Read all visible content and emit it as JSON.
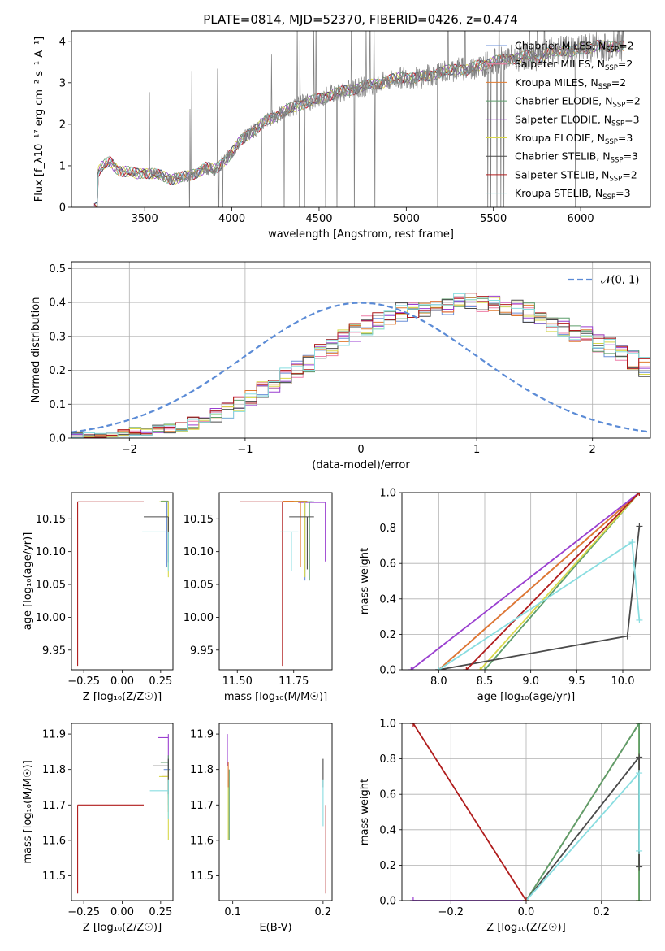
{
  "figure": {
    "title": "PLATE=0814, MJD=52370, FIBERID=0426, z=0.474"
  },
  "colors": {
    "Chabrier MILES": "#6a8fd8",
    "Salpeter MILES": "#ee7fa8",
    "Kroupa MILES": "#e07a2e",
    "Chabrier ELODIE": "#5d9d6b",
    "Salpeter ELODIE": "#9a3fd0",
    "Kroupa ELODIE": "#d8d84a",
    "Chabrier STELIB": "#4a4a4a",
    "Salpeter STELIB": "#b01c1c",
    "Kroupa STELIB": "#88dde0",
    "data": "#808080",
    "gaussian": "#5b8bd6"
  },
  "chart_data": [
    {
      "id": "spectrum",
      "type": "line",
      "xlabel": "wavelength [Angstrom, rest frame]",
      "ylabel": "Flux [f_λ10⁻¹⁷ erg cm⁻² s⁻¹ A⁻¹]",
      "xlim": [
        3080,
        6400
      ],
      "ylim": [
        0,
        4.25
      ],
      "xticks": [
        3500,
        4000,
        4500,
        5000,
        5500,
        6000
      ],
      "yticks": [
        0,
        1,
        2,
        3,
        4
      ],
      "data_series": {
        "name": "data",
        "x": [
          3200,
          3225,
          3250,
          3300,
          3350,
          3400,
          3450,
          3500,
          3550,
          3600,
          3650,
          3700,
          3750,
          3800,
          3850,
          3900,
          3950,
          4000,
          4050,
          4100,
          4150,
          4200,
          4250,
          4300,
          4350,
          4400,
          4450,
          4500,
          4550,
          4600,
          4650,
          4700,
          4750,
          4800,
          4850,
          4900,
          4950,
          5000,
          5050,
          5100,
          5150,
          5200,
          5250,
          5300,
          5350,
          5400,
          5450,
          5500,
          5550,
          5600,
          5650,
          5700,
          5750,
          5800,
          5850,
          5900,
          5950,
          6000,
          6050,
          6100,
          6150,
          6200
        ],
        "y": [
          0,
          0.8,
          0.95,
          1.1,
          0.9,
          0.85,
          0.8,
          0.85,
          0.8,
          0.75,
          0.7,
          0.7,
          0.75,
          0.85,
          0.95,
          0.9,
          1.1,
          1.3,
          1.6,
          1.8,
          1.9,
          2.1,
          2.2,
          2.3,
          2.4,
          2.5,
          2.55,
          2.6,
          2.7,
          2.75,
          2.8,
          2.85,
          2.9,
          2.95,
          3.0,
          3.05,
          3.1,
          3.15,
          3.1,
          3.15,
          3.2,
          3.25,
          3.3,
          3.35,
          3.3,
          3.4,
          3.45,
          3.5,
          3.55,
          3.6,
          3.6,
          3.65,
          3.6,
          3.7,
          3.75,
          3.8,
          3.75,
          3.8,
          3.85,
          3.9,
          3.85,
          3.9
        ]
      },
      "model_series": [
        {
          "name": "Chabrier MILES",
          "label": "Chabrier MILES, N",
          "nssp": "=2"
        },
        {
          "name": "Salpeter MILES",
          "label": "Salpeter MILES, N",
          "nssp": "=2"
        },
        {
          "name": "Kroupa MILES",
          "label": "Kroupa MILES, N",
          "nssp": "=2"
        },
        {
          "name": "Chabrier ELODIE",
          "label": "Chabrier ELODIE, N",
          "nssp": "=2"
        },
        {
          "name": "Salpeter ELODIE",
          "label": "Salpeter ELODIE, N",
          "nssp": "=3"
        },
        {
          "name": "Kroupa ELODIE",
          "label": "Kroupa ELODIE, N",
          "nssp": "=3"
        },
        {
          "name": "Chabrier STELIB",
          "label": "Chabrier STELIB, N",
          "nssp": "=3"
        },
        {
          "name": "Salpeter STELIB",
          "label": "Salpeter STELIB, N",
          "nssp": "=2"
        },
        {
          "name": "Kroupa STELIB",
          "label": "Kroupa STELIB, N",
          "nssp": "=3"
        }
      ],
      "legend_sub": "SSP",
      "legend_position": "right"
    },
    {
      "id": "residuals",
      "type": "line",
      "xlabel": "(data-model)/error",
      "ylabel": "Normed distribution",
      "xlim": [
        -2.5,
        2.5
      ],
      "ylim": [
        0,
        0.52
      ],
      "xticks": [
        -2,
        -1,
        0,
        1,
        2
      ],
      "xtick_labels": [
        "−2",
        "−1",
        "0",
        "1",
        "2"
      ],
      "yticks": [
        0.0,
        0.1,
        0.2,
        0.3,
        0.4,
        0.5
      ],
      "ytick_labels": [
        "0.0",
        "0.1",
        "0.2",
        "0.3",
        "0.4",
        "0.5"
      ],
      "grid": true,
      "gaussian_legend": "𝒩(0, 1)",
      "legend_position": "top-right",
      "bin_width": 0.1,
      "bin_start": -2.5,
      "histogram_base": [
        0.01,
        0.01,
        0.01,
        0.01,
        0.015,
        0.02,
        0.02,
        0.025,
        0.03,
        0.035,
        0.045,
        0.055,
        0.07,
        0.085,
        0.1,
        0.12,
        0.14,
        0.16,
        0.18,
        0.2,
        0.22,
        0.25,
        0.27,
        0.29,
        0.31,
        0.33,
        0.34,
        0.36,
        0.37,
        0.38,
        0.38,
        0.39,
        0.39,
        0.4,
        0.4,
        0.4,
        0.39,
        0.39,
        0.38,
        0.37,
        0.36,
        0.34,
        0.33,
        0.31,
        0.3,
        0.28,
        0.27,
        0.25,
        0.23,
        0.21,
        0.19,
        0.17,
        0.15,
        0.13,
        0.11,
        0.09,
        0.075,
        0.06,
        0.05,
        0.04,
        0.03,
        0.025,
        0.02,
        0.015,
        0.01,
        0.01,
        0.01,
        0.01,
        0.01,
        0.01
      ]
    },
    {
      "id": "age_vs_Z",
      "type": "scatter",
      "xlabel": "Z [log₁₀(Z/Z☉)]",
      "ylabel": "age  [log₁₀(age/yr)]",
      "xlim": [
        -0.33,
        0.33
      ],
      "ylim": [
        9.92,
        10.19
      ],
      "xticks": [
        -0.25,
        0.0,
        0.25
      ],
      "xtick_labels": [
        "−0.25",
        "0.00",
        "0.25"
      ],
      "yticks": [
        9.95,
        10.0,
        10.05,
        10.1,
        10.15
      ],
      "ytick_labels": [
        "9.95",
        "10.00",
        "10.05",
        "10.10",
        "10.15"
      ],
      "points": [
        {
          "series": "Salpeter STELIB",
          "x": -0.29,
          "y": 10.176,
          "xerr": [
            0,
            0.43
          ],
          "yerr": [
            0.25,
            0
          ]
        },
        {
          "series": "Chabrier MILES",
          "x": 0.29,
          "y": 10.176,
          "xerr": [
            0.03,
            0.01
          ],
          "yerr": [
            0.1,
            0
          ]
        },
        {
          "series": "Kroupa MILES",
          "x": 0.3,
          "y": 10.177,
          "xerr": [
            0.04,
            0.0
          ],
          "yerr": [
            0.08,
            0
          ]
        },
        {
          "series": "Chabrier ELODIE",
          "x": 0.3,
          "y": 10.177,
          "xerr": [
            0.05,
            0.0
          ],
          "yerr": [
            0.1,
            0
          ]
        },
        {
          "series": "Kroupa ELODIE",
          "x": 0.3,
          "y": 10.176,
          "xerr": [
            0.06,
            0.0
          ],
          "yerr": [
            0.115,
            0
          ]
        },
        {
          "series": "Chabrier STELIB",
          "x": 0.3,
          "y": 10.153,
          "xerr": [
            0.16,
            0.0
          ],
          "yerr": [
            0.07,
            0
          ]
        },
        {
          "series": "Kroupa STELIB",
          "x": 0.3,
          "y": 10.13,
          "xerr": [
            0.17,
            0.0
          ],
          "yerr": [
            0.06,
            0
          ]
        }
      ]
    },
    {
      "id": "age_vs_mass",
      "type": "scatter",
      "xlabel": "mass [log₁₀(M/M☉)]",
      "ylabel": "",
      "xlim": [
        11.42,
        11.92
      ],
      "ylim": [
        9.92,
        10.19
      ],
      "xticks": [
        11.5,
        11.75
      ],
      "xtick_labels": [
        "11.50",
        "11.75"
      ],
      "yticks": [
        9.95,
        10.0,
        10.05,
        10.1,
        10.15
      ],
      "ytick_labels": [
        "9.95",
        "10.00",
        "10.05",
        "10.10",
        "10.15"
      ],
      "points": [
        {
          "series": "Salpeter STELIB",
          "x": 11.7,
          "y": 10.176,
          "xerr": [
            0.19,
            0.0
          ],
          "yerr": [
            0.25,
            0
          ]
        },
        {
          "series": "Salpeter ELODIE",
          "x": 11.89,
          "y": 10.175,
          "xerr": [
            0.12,
            0.0
          ],
          "yerr": [
            0.09,
            0
          ]
        },
        {
          "series": "Chabrier MILES",
          "x": 11.8,
          "y": 10.176,
          "xerr": [
            0.07,
            0.03
          ],
          "yerr": [
            0.12,
            0
          ]
        },
        {
          "series": "Kroupa MILES",
          "x": 11.78,
          "y": 10.177,
          "xerr": [
            0.08,
            0.03
          ],
          "yerr": [
            0.1,
            0
          ]
        },
        {
          "series": "Chabrier ELODIE",
          "x": 11.82,
          "y": 10.176,
          "xerr": [
            0.06,
            0.02
          ],
          "yerr": [
            0.12,
            0
          ]
        },
        {
          "series": "Kroupa ELODIE",
          "x": 11.8,
          "y": 10.176,
          "xerr": [
            0.05,
            0.02
          ],
          "yerr": [
            0.115,
            0
          ]
        },
        {
          "series": "Chabrier STELIB",
          "x": 11.81,
          "y": 10.153,
          "xerr": [
            0.08,
            0.03
          ],
          "yerr": [
            0.08,
            0
          ]
        },
        {
          "series": "Kroupa STELIB",
          "x": 11.74,
          "y": 10.13,
          "xerr": [
            0.05,
            0.03
          ],
          "yerr": [
            0.06,
            0
          ]
        }
      ]
    },
    {
      "id": "weight_vs_age",
      "type": "line",
      "xlabel": "age  [log₁₀(age/yr)]",
      "ylabel": "mass weight",
      "xlim": [
        7.6,
        10.3
      ],
      "ylim": [
        0,
        1.0
      ],
      "xticks": [
        8.0,
        8.5,
        9.0,
        9.5,
        10.0
      ],
      "xtick_labels": [
        "8.0",
        "8.5",
        "9.0",
        "9.5",
        "10.0"
      ],
      "yticks": [
        0.0,
        0.2,
        0.4,
        0.6,
        0.8,
        1.0
      ],
      "ytick_labels": [
        "0.0",
        "0.2",
        "0.4",
        "0.6",
        "0.8",
        "1.0"
      ],
      "grid": true,
      "series": [
        {
          "name": "Chabrier MILES",
          "x": [
            8.0,
            10.18
          ],
          "y": [
            0.0,
            1.0
          ]
        },
        {
          "name": "Salpeter MILES",
          "x": [
            8.0,
            10.18
          ],
          "y": [
            0.0,
            1.0
          ]
        },
        {
          "name": "Kroupa MILES",
          "x": [
            8.0,
            10.18
          ],
          "y": [
            0.0,
            1.0
          ]
        },
        {
          "name": "Chabrier ELODIE",
          "x": [
            8.5,
            10.18
          ],
          "y": [
            0.0,
            1.0
          ]
        },
        {
          "name": "Salpeter ELODIE",
          "x": [
            7.7,
            10.18
          ],
          "y": [
            0.0,
            1.0
          ]
        },
        {
          "name": "Kroupa ELODIE",
          "x": [
            8.45,
            10.18
          ],
          "y": [
            0.0,
            1.0
          ]
        },
        {
          "name": "Chabrier STELIB",
          "x": [
            8.0,
            10.05,
            10.18
          ],
          "y": [
            0.0,
            0.19,
            0.81
          ]
        },
        {
          "name": "Salpeter STELIB",
          "x": [
            8.3,
            10.18
          ],
          "y": [
            0.0,
            1.0
          ]
        },
        {
          "name": "Kroupa STELIB",
          "x": [
            8.0,
            10.1,
            10.18
          ],
          "y": [
            0.0,
            0.72,
            0.28
          ]
        }
      ]
    },
    {
      "id": "mass_vs_Z",
      "type": "scatter",
      "xlabel": "Z [log₁₀(Z/Z☉)]",
      "ylabel": "mass [log₁₀(M/M☉)]",
      "xlim": [
        -0.33,
        0.33
      ],
      "ylim": [
        11.43,
        11.93
      ],
      "xticks": [
        -0.25,
        0.0,
        0.25
      ],
      "xtick_labels": [
        "−0.25",
        "0.00",
        "0.25"
      ],
      "yticks": [
        11.5,
        11.6,
        11.7,
        11.8,
        11.9
      ],
      "ytick_labels": [
        "11.5",
        "11.6",
        "11.7",
        "11.8",
        "11.9"
      ],
      "points": [
        {
          "series": "Salpeter STELIB",
          "x": -0.29,
          "y": 11.7,
          "xerr": [
            0,
            0.43
          ],
          "yerr": [
            0.25,
            0.0
          ]
        },
        {
          "series": "Salpeter ELODIE",
          "x": 0.3,
          "y": 11.89,
          "xerr": [
            0.07,
            0.0
          ],
          "yerr": [
            0.1,
            0.01
          ]
        },
        {
          "series": "Chabrier MILES",
          "x": 0.3,
          "y": 11.8,
          "xerr": [
            0.03,
            0.01
          ],
          "yerr": [
            0.1,
            0.02
          ]
        },
        {
          "series": "Kroupa MILES",
          "x": 0.3,
          "y": 11.78,
          "xerr": [
            0.04,
            0.0
          ],
          "yerr": [
            0.1,
            0.02
          ]
        },
        {
          "series": "Chabrier ELODIE",
          "x": 0.3,
          "y": 11.82,
          "xerr": [
            0.05,
            0.0
          ],
          "yerr": [
            0.1,
            0.02
          ]
        },
        {
          "series": "Kroupa ELODIE",
          "x": 0.3,
          "y": 11.78,
          "xerr": [
            0.06,
            0.0
          ],
          "yerr": [
            0.18,
            0.02
          ]
        },
        {
          "series": "Chabrier STELIB",
          "x": 0.3,
          "y": 11.81,
          "xerr": [
            0.1,
            0.0
          ],
          "yerr": [
            0.08,
            0.02
          ]
        },
        {
          "series": "Kroupa STELIB",
          "x": 0.3,
          "y": 11.74,
          "xerr": [
            0.12,
            0.0
          ],
          "yerr": [
            0.08,
            0.03
          ]
        }
      ]
    },
    {
      "id": "mass_vs_EBV",
      "type": "scatter",
      "xlabel": "E(B-V)",
      "ylabel": "",
      "xlim": [
        0.085,
        0.21
      ],
      "ylim": [
        11.43,
        11.93
      ],
      "xticks": [
        0.1,
        0.2
      ],
      "xtick_labels": [
        "0.1",
        "0.2"
      ],
      "yticks": [
        11.5,
        11.6,
        11.7,
        11.8,
        11.9
      ],
      "ytick_labels": [
        "11.5",
        "11.6",
        "11.7",
        "11.8",
        "11.9"
      ],
      "points": [
        {
          "series": "Salpeter ELODIE",
          "x": 0.094,
          "y": 11.89,
          "xerr": [
            0,
            0
          ],
          "yerr": [
            0.08,
            0.01
          ]
        },
        {
          "series": "Kroupa ELODIE",
          "x": 0.095,
          "y": 11.75,
          "xerr": [
            0,
            0
          ],
          "yerr": [
            0.15,
            0.02
          ]
        },
        {
          "series": "Chabrier ELODIE",
          "x": 0.096,
          "y": 11.78,
          "xerr": [
            0,
            0
          ],
          "yerr": [
            0.18,
            0.02
          ]
        },
        {
          "series": "Kroupa MILES",
          "x": 0.095,
          "y": 11.8,
          "xerr": [
            0,
            0
          ],
          "yerr": [
            0.05,
            0.02
          ]
        },
        {
          "series": "Salpeter STELIB",
          "x": 0.203,
          "y": 11.7,
          "xerr": [
            0,
            0
          ],
          "yerr": [
            0.25,
            0.0
          ]
        },
        {
          "series": "Chabrier STELIB",
          "x": 0.2,
          "y": 11.81,
          "xerr": [
            0,
            0
          ],
          "yerr": [
            0.06,
            0.02
          ]
        },
        {
          "series": "Kroupa STELIB",
          "x": 0.2,
          "y": 11.74,
          "xerr": [
            0,
            0
          ],
          "yerr": [
            0.1,
            0.03
          ]
        }
      ]
    },
    {
      "id": "weight_vs_Z",
      "type": "line",
      "xlabel": "Z [log₁₀(Z/Z☉)]",
      "ylabel": "mass weight",
      "xlim": [
        -0.33,
        0.33
      ],
      "ylim": [
        0,
        1.0
      ],
      "xticks": [
        -0.2,
        0.0,
        0.2
      ],
      "xtick_labels": [
        "−0.2",
        "0.0",
        "0.2"
      ],
      "yticks": [
        0.0,
        0.2,
        0.4,
        0.6,
        0.8,
        1.0
      ],
      "ytick_labels": [
        "0.0",
        "0.2",
        "0.4",
        "0.6",
        "0.8",
        "1.0"
      ],
      "grid": true,
      "series": [
        {
          "name": "Salpeter ELODIE",
          "x": [
            -0.3,
            0.0,
            0.3
          ],
          "y": [
            0.0,
            0.0,
            1.0
          ]
        },
        {
          "name": "Kroupa ELODIE",
          "x": [
            0.0,
            0.3,
            0.3
          ],
          "y": [
            0.0,
            1.0,
            0.0
          ]
        },
        {
          "name": "Chabrier ELODIE",
          "x": [
            0.0,
            0.3,
            0.3
          ],
          "y": [
            0.0,
            1.0,
            0.0
          ]
        },
        {
          "name": "Chabrier STELIB",
          "x": [
            0.0,
            0.3,
            0.3
          ],
          "y": [
            0.0,
            0.81,
            0.19
          ]
        },
        {
          "name": "Kroupa STELIB",
          "x": [
            0.0,
            0.3,
            0.3
          ],
          "y": [
            0.0,
            0.72,
            0.28
          ]
        },
        {
          "name": "Salpeter STELIB",
          "x": [
            -0.3,
            0.0
          ],
          "y": [
            1.0,
            0.0
          ]
        }
      ]
    }
  ]
}
